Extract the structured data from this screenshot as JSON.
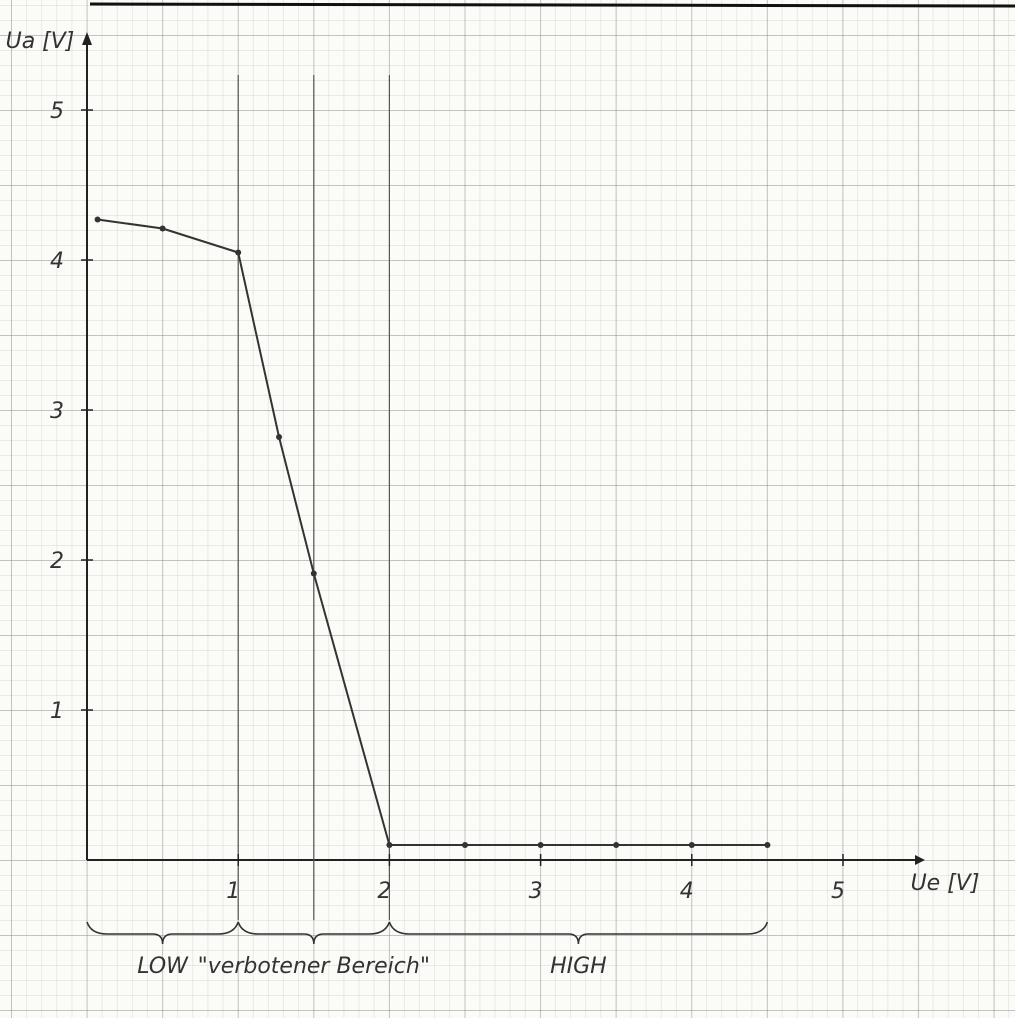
{
  "chart_data": {
    "type": "line",
    "x_label": "Ue [V]",
    "y_label": "Ua [V]",
    "x": [
      0.07,
      0.5,
      1.0,
      1.27,
      1.5,
      2.0,
      2.5,
      3.0,
      3.5,
      4.0,
      4.5
    ],
    "series": [
      {
        "color": "#333333",
        "values": [
          4.27,
          4.21,
          4.05,
          2.82,
          1.91,
          0.1,
          0.1,
          0.1,
          0.1,
          0.1,
          0.1
        ]
      }
    ],
    "xlim": [
      0,
      6.1
    ],
    "ylim": [
      0,
      5.5
    ],
    "xticks": [
      1,
      2,
      3,
      4,
      5
    ],
    "yticks": [
      1,
      2,
      3,
      4,
      5
    ],
    "vlines": [
      1,
      1.5,
      2
    ],
    "regions": [
      {
        "label": "LOW",
        "from": 0,
        "to": 1
      },
      {
        "label": "\"verbotener Bereich\"",
        "from": 1,
        "to": 2
      },
      {
        "label": "HIGH",
        "from": 2,
        "to": 4.5
      }
    ]
  }
}
